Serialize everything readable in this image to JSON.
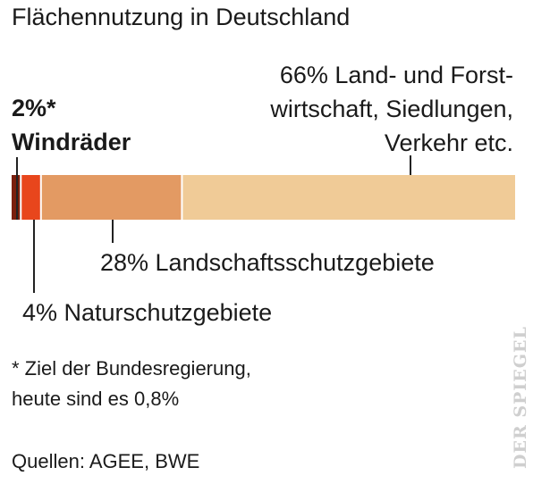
{
  "title": "Flächennutzung in Deutschland",
  "chart_data": {
    "type": "bar",
    "orientation": "horizontal-stacked",
    "unit": "%",
    "segments": [
      {
        "label": "2%* Windräder",
        "value": 2,
        "color": "#7a1f0d"
      },
      {
        "label": "4% Naturschutzgebiete",
        "value": 4,
        "color": "#e8461c"
      },
      {
        "label": "28% Landschaftsschutzgebiete",
        "value": 28,
        "color": "#e39a63"
      },
      {
        "label": "66% Land- und Forstwirtschaft, Siedlungen, Verkehr etc.",
        "value": 66,
        "color": "#f0cb97"
      }
    ]
  },
  "labels": {
    "wind_line1": "2%*",
    "wind_line2": "Windräder",
    "forest_line1": "66% Land- und Forst-",
    "forest_line2": "wirtschaft, Siedlungen,",
    "forest_line3": "Verkehr etc.",
    "landscape": "28% Landschaftsschutzgebiete",
    "nature": "4% Naturschutzgebiete"
  },
  "footnote_line1": "* Ziel der Bundesregierung,",
  "footnote_line2": "heute sind es 0,8%",
  "sources": "Quellen: AGEE, BWE",
  "brand": "DER SPIEGEL"
}
